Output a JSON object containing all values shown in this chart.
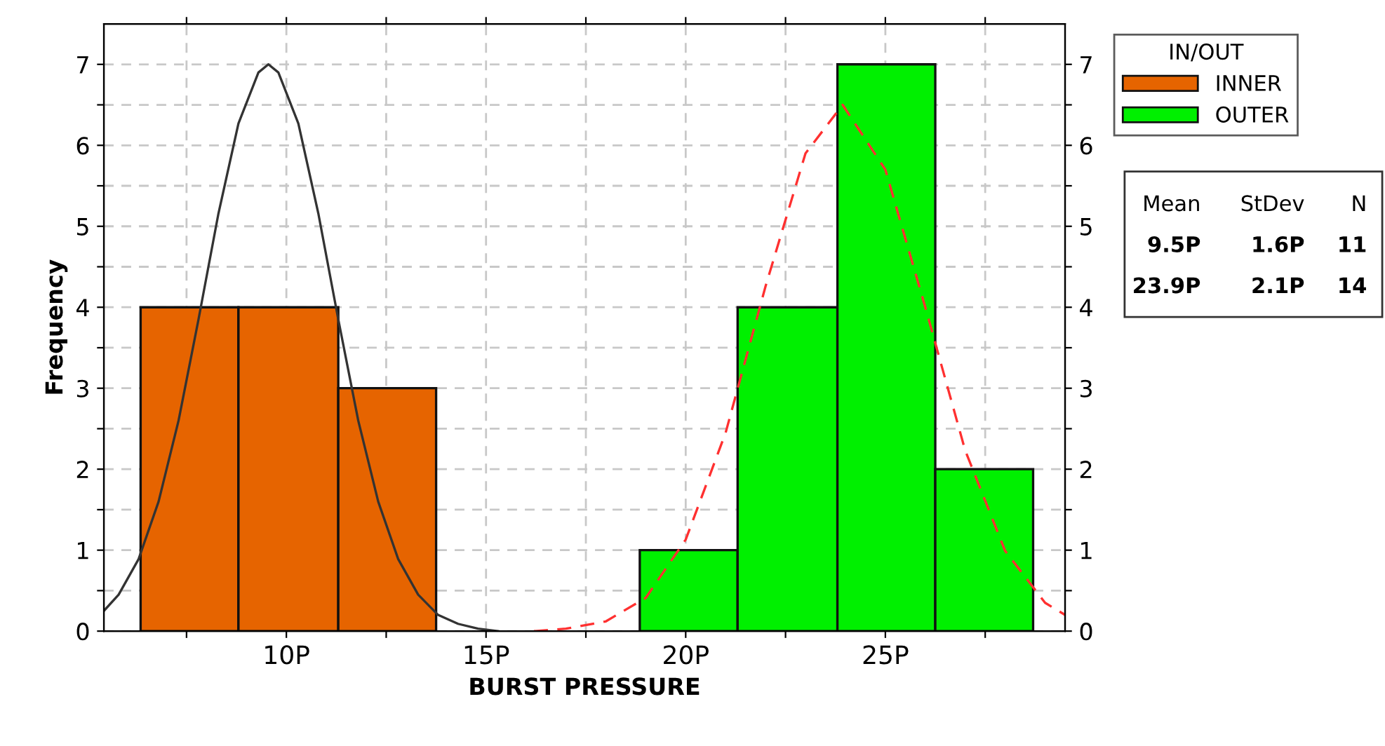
{
  "chart_data": {
    "type": "histogram",
    "xlabel": "BURST PRESSURE",
    "ylabel": "Frequency",
    "legend_title": "IN/OUT",
    "series": [
      {
        "name": "INNER",
        "color": "#e66400",
        "bins": [
          6.35,
          8.8,
          11.3,
          13.75
        ],
        "values": [
          4,
          4,
          3
        ]
      },
      {
        "name": "OUTER",
        "color": "#00f000",
        "bins": [
          18.85,
          21.3,
          23.8,
          26.25,
          28.7
        ],
        "values": [
          1,
          4,
          7,
          2
        ]
      },
      {
        "type": "line",
        "color": "#333333",
        "line_style": "solid",
        "x": [
          5.43,
          5.8,
          6.3,
          6.8,
          7.3,
          7.8,
          8.3,
          8.8,
          9.3,
          9.55,
          9.8,
          10.3,
          10.8,
          11.3,
          11.8,
          12.3,
          12.8,
          13.3,
          13.8,
          14.3,
          14.8,
          15.3
        ],
        "values": [
          0.25,
          0.45,
          0.89,
          1.6,
          2.6,
          3.85,
          5.16,
          6.27,
          6.9,
          7,
          6.9,
          6.27,
          5.16,
          3.85,
          2.6,
          1.6,
          0.89,
          0.45,
          0.2,
          0.09,
          0.03,
          0
        ]
      },
      {
        "type": "line",
        "color": "#ff3030",
        "line_style": "dashed",
        "x": [
          16.2,
          17,
          18,
          19,
          20,
          21,
          22,
          23,
          23.93,
          25,
          26,
          27,
          28,
          29,
          29.5
        ],
        "values": [
          0,
          0.03,
          0.12,
          0.41,
          1.13,
          2.45,
          4.26,
          5.9,
          6.5,
          5.7,
          4.0,
          2.23,
          0.99,
          0.35,
          0.2
        ]
      }
    ],
    "xlim": [
      5.43,
      29.5
    ],
    "xticks": [
      {
        "value": 7.5,
        "label": null
      },
      {
        "value": 10,
        "label": "10P"
      },
      {
        "value": 12.5,
        "label": null
      },
      {
        "value": 15,
        "label": "15P"
      },
      {
        "value": 17.5,
        "label": null
      },
      {
        "value": 20,
        "label": "20P"
      },
      {
        "value": 22.5,
        "label": null
      },
      {
        "value": 25,
        "label": "25P"
      },
      {
        "value": 27.5,
        "label": null
      }
    ],
    "ylim": [
      0,
      7.5
    ],
    "yticks": [
      0,
      {
        "value": 0.5,
        "label": null
      },
      1,
      {
        "value": 1.5,
        "label": null
      },
      2,
      {
        "value": 2.5,
        "label": null
      },
      3,
      {
        "value": 3.5,
        "label": null
      },
      4,
      {
        "value": 4.5,
        "label": null
      },
      5,
      {
        "value": 5.5,
        "label": null
      },
      6,
      {
        "value": 6.5,
        "label": null
      },
      7
    ],
    "y2lim": [
      0,
      7.5
    ],
    "y2ticks": [
      0,
      {
        "value": 0.5,
        "label": null
      },
      1,
      {
        "value": 1.5,
        "label": null
      },
      2,
      {
        "value": 2.5,
        "label": null
      },
      3,
      {
        "value": 3.5,
        "label": null
      },
      4,
      {
        "value": 4.5,
        "label": null
      },
      5,
      {
        "value": 5.5,
        "label": null
      },
      6,
      {
        "value": 6.5,
        "label": null
      },
      7
    ],
    "grid": true,
    "legend": "right",
    "annotations": [
      "Mean",
      "StDev",
      "N",
      "9.5P",
      "1.6P",
      "11",
      "23.9P",
      "2.1P",
      "14"
    ]
  }
}
